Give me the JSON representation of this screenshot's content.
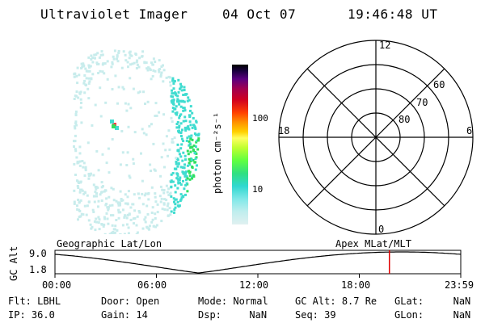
{
  "header": {
    "title": "Ultraviolet Imager",
    "date": "04 Oct 07",
    "time": "19:46:48 UT"
  },
  "colorbar": {
    "unit_label": "photon cm⁻²s⁻¹",
    "ticks": [
      "100",
      "10"
    ]
  },
  "polar_plot": {
    "mlt_labels": {
      "top": "12",
      "left": "18",
      "right": "6",
      "bottom": "0"
    },
    "lat_labels": [
      "60",
      "70",
      "80"
    ]
  },
  "alt_panel": {
    "ylabel": "GC Alt",
    "ymax": "9.0",
    "ymin": "1.8",
    "left_caption": "Geographic Lat/Lon",
    "right_caption": "Apex MLat/MLT",
    "xticks": [
      "00:00",
      "06:00",
      "12:00",
      "18:00",
      "23:59"
    ],
    "cursor_time_hours": 19.78
  },
  "status": {
    "flt_label": "Flt:",
    "flt_value": "LBHL",
    "ip_label": "IP:",
    "ip_value": "36.0",
    "door_label": "Door:",
    "door_value": "Open",
    "gain_label": "Gain:",
    "gain_value": "14",
    "mode_label": "Mode:",
    "mode_value": "Normal",
    "dsp_label": "Dsp:",
    "dsp_value": "NaN",
    "gcalt_label": "GC Alt:",
    "gcalt_value": "8.7 Re",
    "seq_label": "Seq:",
    "seq_value": "39",
    "glat_label": "GLat:",
    "glat_value": "NaN",
    "glon_label": "GLon:",
    "glon_value": "NaN"
  },
  "colors": {
    "cursor": "#e00000",
    "aurora_faint": "#c8ecec",
    "aurora_mid": "#40dcd0",
    "aurora_bright": "#30e060"
  }
}
